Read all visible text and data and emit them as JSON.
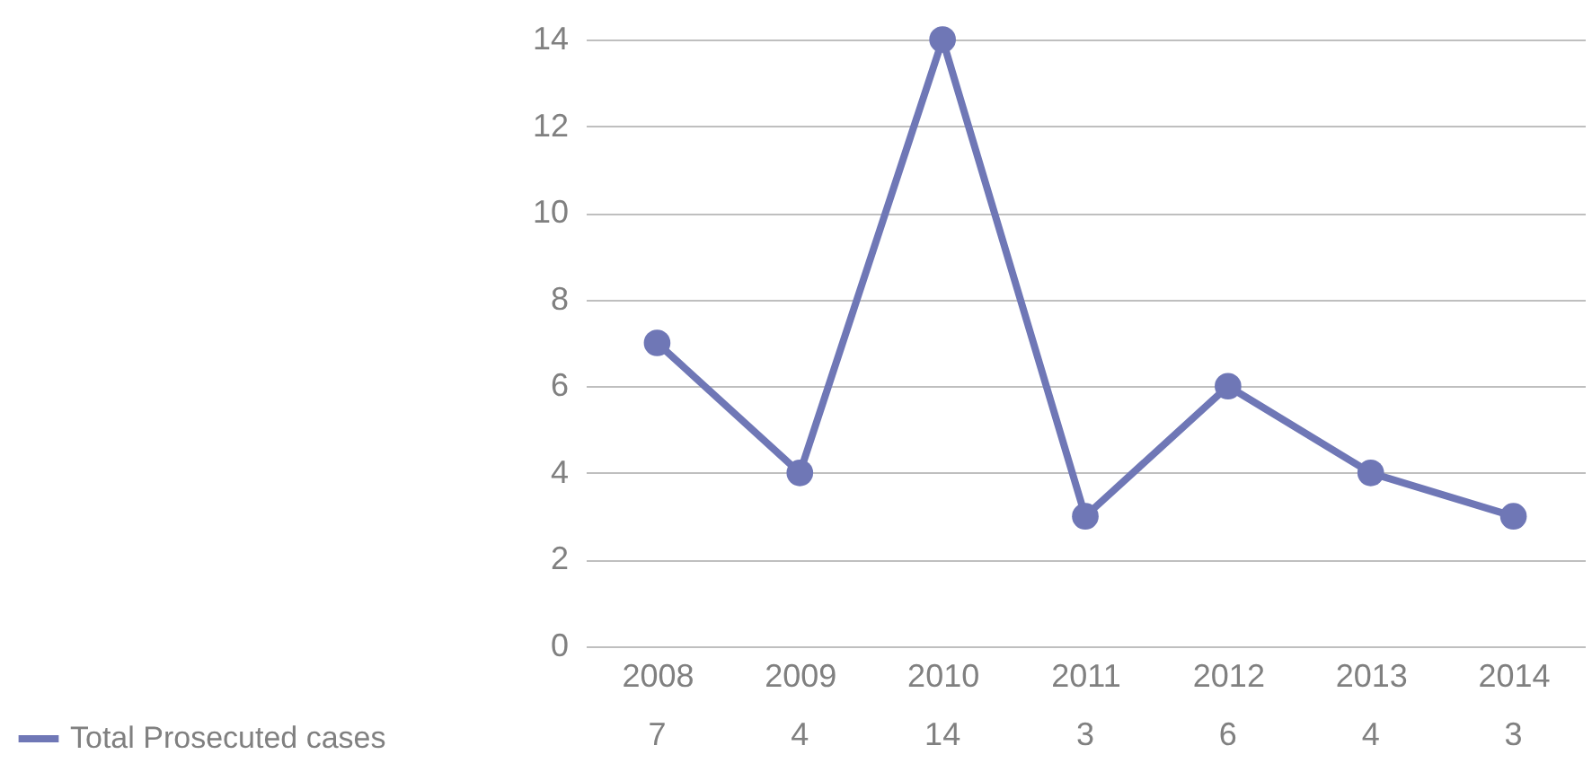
{
  "chart_data": {
    "type": "line",
    "categories": [
      "2008",
      "2009",
      "2010",
      "2011",
      "2012",
      "2013",
      "2014"
    ],
    "series": [
      {
        "name": "Total Prosecuted cases",
        "color": "#6f77b6",
        "values": [
          7,
          4,
          14,
          3,
          6,
          4,
          3
        ]
      }
    ],
    "ylim": [
      0,
      14
    ],
    "yticks": [
      0,
      2,
      4,
      6,
      8,
      10,
      12,
      14
    ],
    "grid": "y",
    "marker": "circle",
    "line_style": "solid",
    "data_labels": true,
    "legend": "bottom"
  }
}
